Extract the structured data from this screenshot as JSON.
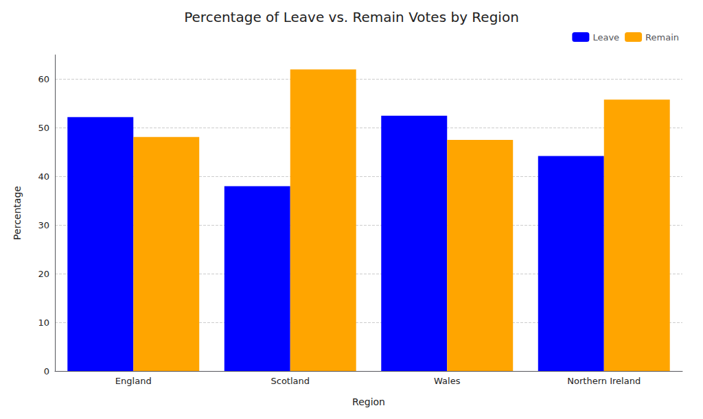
{
  "chart_data": {
    "type": "bar",
    "title": "Percentage of Leave vs. Remain Votes by Region",
    "xlabel": "Region",
    "ylabel": "Percentage",
    "categories": [
      "England",
      "Scotland",
      "Wales",
      "Northern Ireland"
    ],
    "series": [
      {
        "name": "Leave",
        "color": "#0000ff",
        "values": [
          52.2,
          38.0,
          52.5,
          44.2
        ]
      },
      {
        "name": "Remain",
        "color": "#ffa500",
        "values": [
          48.1,
          62.0,
          47.5,
          55.8
        ]
      }
    ],
    "ylim": [
      0,
      65
    ],
    "yticks": [
      0,
      10,
      20,
      30,
      40,
      50,
      60
    ],
    "grid": true,
    "legend": "upper right"
  }
}
